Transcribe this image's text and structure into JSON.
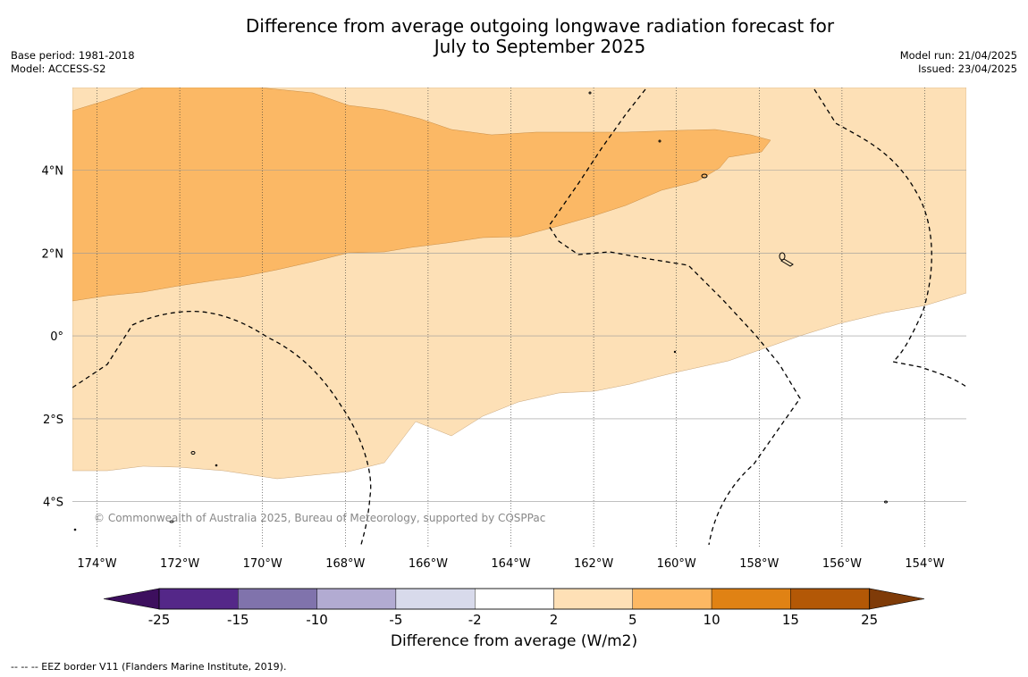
{
  "title": {
    "line1": "Difference from average outgoing longwave radiation forecast for",
    "line2": "July to September 2025"
  },
  "meta_left": {
    "base_period": "Base period: 1981-2018",
    "model": "Model: ACCESS-S2"
  },
  "meta_right": {
    "model_run": "Model run: 21/04/2025",
    "issued": "Issued: 23/04/2025"
  },
  "map": {
    "lon_labels": [
      "174°W",
      "172°W",
      "170°W",
      "168°W",
      "166°W",
      "164°W",
      "162°W",
      "160°W",
      "158°W",
      "156°W",
      "154°W"
    ],
    "lat_labels": [
      "4°N",
      "2°N",
      "0°",
      "2°S",
      "4°S"
    ],
    "copyright": "© Commonwealth of Australia 2025, Bureau of Meteorology, supported by COSPPac",
    "fill_colors": {
      "light_orange": "#fde0b6",
      "medium_orange": "#fbb865"
    }
  },
  "colorbar": {
    "ticks": [
      "-25",
      "-15",
      "-10",
      "-5",
      "-2",
      "2",
      "5",
      "10",
      "15",
      "25"
    ],
    "colors": [
      "#3d0f5e",
      "#542788",
      "#8073ac",
      "#b2abd2",
      "#d8daeb",
      "#ffffff",
      "#fee0b6",
      "#fdb863",
      "#e08214",
      "#b35806",
      "#7f3b08"
    ],
    "label": "Difference from average (W/m2)"
  },
  "footer": "--  --  -- EEZ border V11 (Flanders Marine Institute, 2019)."
}
